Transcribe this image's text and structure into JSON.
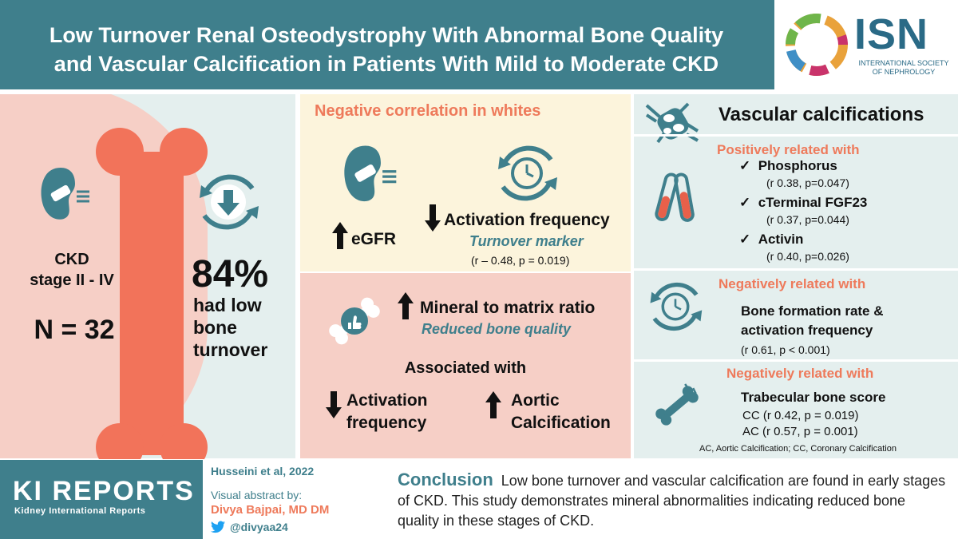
{
  "header": {
    "title_line1": "Low Turnover Renal Osteodystrophy With Abnormal Bone Quality",
    "title_line2": "and Vascular Calcification in Patients With Mild to Moderate CKD",
    "logo_text": "ISN",
    "logo_sub_line1": "INTERNATIONAL SOCIETY",
    "logo_sub_line2": "OF NEPHROLOGY"
  },
  "left": {
    "ckd_line1": "CKD",
    "ckd_line2": "stage II - IV",
    "n": "N = 32",
    "percent": "84%",
    "low_line1": "had low",
    "low_line2": "bone",
    "low_line3": "turnover"
  },
  "middle_top": {
    "heading": "Negative correlation in whites",
    "egfr": "eGFR",
    "activation": "Activation frequency",
    "marker": "Turnover marker",
    "stat": "(r – 0.48, p = 0.019)"
  },
  "middle_bottom": {
    "mineral": "Mineral to matrix ratio",
    "reduced": "Reduced bone quality",
    "associated": "Associated with",
    "activation_line1": "Activation",
    "activation_line2": "frequency",
    "aortic_line1": "Aortic",
    "aortic_line2": "Calcification"
  },
  "right": {
    "title": "Vascular calcifications",
    "pos_heading": "Positively related with",
    "items": [
      {
        "name": "Phosphorus",
        "stat": "(r 0.38, p=0.047)"
      },
      {
        "name": "cTerminal FGF23",
        "stat": "(r 0.37, p=0.044)"
      },
      {
        "name": "Activin",
        "stat": "(r 0.40, p=0.026)"
      }
    ],
    "neg_heading1": "Negatively related with",
    "bfr_line1": "Bone formation rate &",
    "bfr_line2": "activation frequency",
    "bfr_stat": "(r 0.61, p < 0.001)",
    "neg_heading2": "Negatively related with",
    "tbs": "Trabecular bone score",
    "cc": "CC (r 0.42, p = 0.019)",
    "ac": "AC (r 0.57, p = 0.001)",
    "footnote": "AC, Aortic Calcification; CC, Coronary Calcification",
    "check": "✓"
  },
  "footer": {
    "ki_title": "KI REPORTS",
    "ki_sub": "Kidney International Reports",
    "citation": "Husseini et al, 2022",
    "visual_by": "Visual abstract by:",
    "author": "Divya Bajpai, MD DM",
    "handle": "@divyaa24",
    "conclusion_head": "Conclusion",
    "conclusion_text": "Low bone turnover and vascular calcification are found in early stages of CKD. This study demonstrates mineral abnormalities indicating reduced bone quality in these stages of CKD."
  },
  "colors": {
    "teal": "#3f7f8c",
    "coral": "#ee7a5b",
    "pink": "#f6cfc6",
    "cream": "#fcf4dc",
    "mint": "#e4efee"
  }
}
